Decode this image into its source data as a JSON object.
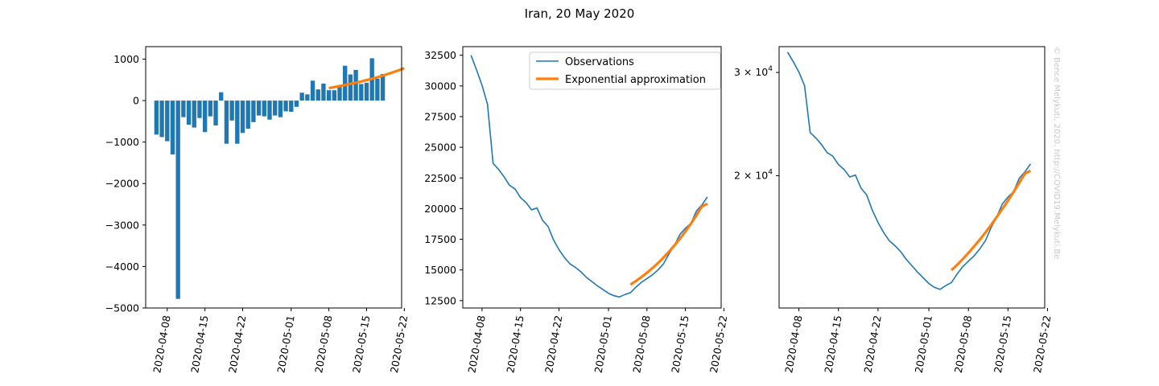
{
  "figure_title": "Iran, 20 May 2020",
  "copyright": "© Bence Melykuti, 2020. http://COVID19.Melykuti.Be",
  "colors": {
    "observations": "#1f77b4",
    "approximation": "#ff7f0e",
    "bars": "#1f77b4"
  },
  "chart_data": [
    {
      "type": "bar",
      "panel": "left",
      "x_tick_labels": [
        "2020-04-08",
        "2020-04-15",
        "2020-04-22",
        "2020-05-01",
        "2020-05-08",
        "2020-05-15",
        "2020-05-22"
      ],
      "y_tick_labels": [
        "1000",
        "0",
        "−1000",
        "−2000",
        "−3000",
        "−4000",
        "−5000"
      ],
      "ylim": [
        -5000,
        1300
      ],
      "start_date": "2020-04-06",
      "values": [
        -820,
        -880,
        -980,
        -1300,
        -4780,
        -400,
        -580,
        -650,
        -420,
        -760,
        -380,
        -600,
        200,
        -1040,
        -480,
        -1040,
        -780,
        -680,
        -520,
        -360,
        -380,
        -460,
        -360,
        -400,
        -260,
        -270,
        -150,
        190,
        150,
        480,
        270,
        410,
        250,
        250,
        360,
        840,
        630,
        740,
        400,
        430,
        1020,
        530,
        640
      ],
      "fit_start_date": "2020-05-08",
      "fit_values": [
        300,
        325,
        350,
        375,
        402,
        430,
        460,
        493,
        527,
        563,
        602,
        643,
        687,
        733,
        781
      ]
    },
    {
      "type": "line",
      "panel": "middle",
      "legend": [
        "Observations",
        "Exponential approximation"
      ],
      "legend_position": "top-right",
      "x_tick_labels": [
        "2020-04-08",
        "2020-04-15",
        "2020-04-22",
        "2020-05-01",
        "2020-05-08",
        "2020-05-15",
        "2020-05-22"
      ],
      "y_tick_labels": [
        "32500",
        "30000",
        "27500",
        "25000",
        "22500",
        "20000",
        "17500",
        "15000",
        "12500"
      ],
      "ylim": [
        11900,
        33200
      ],
      "start_date": "2020-04-06",
      "values": [
        32500,
        31300,
        30050,
        28500,
        23700,
        23200,
        22600,
        21900,
        21600,
        20900,
        20500,
        19900,
        20050,
        19050,
        18550,
        17450,
        16650,
        16000,
        15500,
        15200,
        14850,
        14400,
        14050,
        13700,
        13400,
        13100,
        12900,
        12800,
        13000,
        13150,
        13600,
        14000,
        14300,
        14600,
        15000,
        15500,
        16300,
        17000,
        17900,
        18400,
        18800,
        19800,
        20300,
        20950
      ],
      "fit_start_date": "2020-05-05",
      "fit_values": [
        13800,
        14100,
        14420,
        14770,
        15150,
        15560,
        16000,
        16480,
        17000,
        17550,
        18140,
        18770,
        19450,
        20170,
        20400
      ]
    },
    {
      "type": "line",
      "panel": "right",
      "y_scale": "log",
      "x_tick_labels": [
        "2020-04-08",
        "2020-04-15",
        "2020-04-22",
        "2020-05-01",
        "2020-05-08",
        "2020-05-15",
        "2020-05-22"
      ],
      "y_tick_labels": [
        {
          "base": "3 × 10",
          "exp": "4"
        },
        {
          "base": "2 × 10",
          "exp": "4"
        }
      ],
      "y_tick_values": [
        30000,
        20000
      ],
      "ylim": [
        11900,
        33200
      ],
      "start_date": "2020-04-06",
      "values": [
        32500,
        31300,
        30050,
        28500,
        23700,
        23200,
        22600,
        21900,
        21600,
        20900,
        20500,
        19900,
        20050,
        19050,
        18550,
        17450,
        16650,
        16000,
        15500,
        15200,
        14850,
        14400,
        14050,
        13700,
        13400,
        13100,
        12900,
        12800,
        13000,
        13150,
        13600,
        14000,
        14300,
        14600,
        15000,
        15500,
        16300,
        17000,
        17900,
        18400,
        18800,
        19800,
        20300,
        20950
      ],
      "fit_start_date": "2020-05-05",
      "fit_values": [
        13800,
        14100,
        14420,
        14770,
        15150,
        15560,
        16000,
        16480,
        17000,
        17550,
        18140,
        18770,
        19450,
        20170,
        20400
      ]
    }
  ]
}
